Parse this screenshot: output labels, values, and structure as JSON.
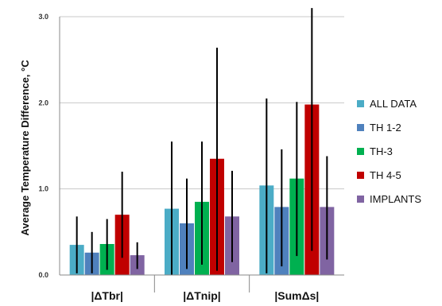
{
  "chart_data": {
    "type": "bar",
    "title": "",
    "xlabel": "",
    "ylabel": "Average Temperature Difference, °C",
    "ylim": [
      0,
      3.0
    ],
    "yticks": [
      "0.0",
      "1.0",
      "2.0",
      "3.0"
    ],
    "ytick_values": [
      0,
      1,
      2,
      3
    ],
    "grid": true,
    "legend_position": "right",
    "categories": [
      "|ΔTbr|",
      "|ΔTnip|",
      "|SumΔs|"
    ],
    "series": [
      {
        "name": "ALL DATA",
        "color": "#4bacc6",
        "values": [
          0.35,
          0.77,
          1.04
        ],
        "err_low": [
          0.02,
          0.0,
          0.02
        ],
        "err_high": [
          0.68,
          1.55,
          2.05
        ]
      },
      {
        "name": "TH 1-2",
        "color": "#4f81bd",
        "values": [
          0.26,
          0.6,
          0.79
        ],
        "err_low": [
          0.02,
          0.07,
          0.1
        ],
        "err_high": [
          0.5,
          1.12,
          1.46
        ]
      },
      {
        "name": "TH-3",
        "color": "#00b050",
        "values": [
          0.36,
          0.85,
          1.12
        ],
        "err_low": [
          0.06,
          0.12,
          0.22
        ],
        "err_high": [
          0.65,
          1.55,
          2.01
        ]
      },
      {
        "name": "TH 4-5",
        "color": "#c00000",
        "values": [
          0.7,
          1.35,
          1.98
        ],
        "err_low": [
          0.2,
          0.05,
          0.28
        ],
        "err_high": [
          1.2,
          2.64,
          3.1
        ]
      },
      {
        "name": "IMPLANTS",
        "color": "#8064a2",
        "values": [
          0.23,
          0.68,
          0.79
        ],
        "err_low": [
          0.07,
          0.15,
          0.18
        ],
        "err_high": [
          0.38,
          1.21,
          1.38
        ]
      }
    ]
  }
}
